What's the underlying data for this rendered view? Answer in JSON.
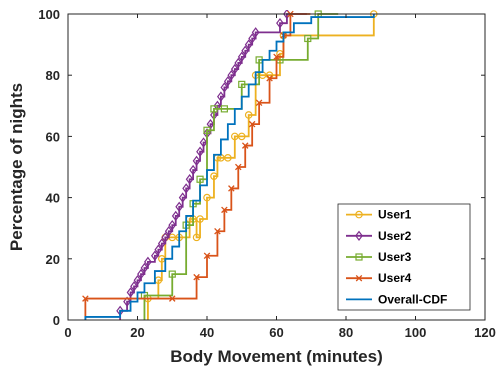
{
  "chart_data": {
    "type": "line",
    "step": true,
    "xlabel": "Body Movement (minutes)",
    "ylabel": "Percentage of nights",
    "xlim": [
      0,
      120
    ],
    "ylim": [
      0,
      100
    ],
    "xticks": [
      0,
      20,
      40,
      60,
      80,
      100,
      120
    ],
    "yticks": [
      0,
      20,
      40,
      60,
      80,
      100
    ],
    "grid": false,
    "legend_position": "bottom-right",
    "series": [
      {
        "name": "User1",
        "color": "#EDB120",
        "marker": "circle",
        "x": [
          23,
          26,
          27,
          28,
          30,
          32,
          35,
          36,
          37,
          38,
          40,
          42,
          43,
          44,
          46,
          48,
          50,
          52,
          54,
          56,
          58,
          61,
          62,
          88
        ],
        "y": [
          7,
          13,
          20,
          27,
          27,
          27,
          33,
          33,
          27,
          33,
          40,
          47,
          53,
          53,
          53,
          60,
          60,
          67,
          80,
          80,
          80,
          87,
          93,
          100
        ]
      },
      {
        "name": "User2",
        "color": "#7E2F8E",
        "marker": "diamond",
        "x": [
          15,
          17,
          18,
          19,
          20,
          21,
          22,
          23,
          25,
          26,
          27,
          28,
          29,
          30,
          31,
          32,
          33,
          34,
          35,
          36,
          37,
          38,
          39,
          40,
          41,
          42,
          43,
          44,
          45,
          46,
          47,
          48,
          49,
          50,
          51,
          52,
          53,
          54,
          61,
          63
        ],
        "y": [
          3,
          6,
          9,
          11,
          13,
          15,
          17,
          19,
          21,
          23,
          25,
          27,
          29,
          31,
          34,
          37,
          40,
          43,
          46,
          49,
          52,
          55,
          58,
          61,
          64,
          67,
          70,
          73,
          76,
          78,
          80,
          82,
          84,
          86,
          88,
          90,
          92,
          94,
          97,
          100
        ]
      },
      {
        "name": "User3",
        "color": "#77AC30",
        "marker": "square",
        "x": [
          22,
          30,
          34,
          36,
          38,
          40,
          42,
          45,
          50,
          55,
          61,
          69,
          72
        ],
        "y": [
          8,
          15,
          31,
          38,
          46,
          62,
          69,
          69,
          77,
          85,
          85,
          92,
          100
        ]
      },
      {
        "name": "User4",
        "color": "#D95319",
        "marker": "x",
        "x": [
          5,
          30,
          37,
          40,
          43,
          45,
          47,
          49,
          51,
          53,
          55,
          58,
          60,
          62,
          64
        ],
        "y": [
          7,
          7,
          14,
          21,
          29,
          36,
          43,
          50,
          57,
          64,
          71,
          79,
          86,
          93,
          100
        ]
      },
      {
        "name": "Overall-CDF",
        "color": "#0072BD",
        "marker": "none",
        "x": [
          5,
          15,
          18,
          20,
          22,
          25,
          28,
          30,
          32,
          34,
          36,
          38,
          40,
          42,
          44,
          46,
          48,
          50,
          52,
          54,
          56,
          58,
          60,
          62,
          65,
          70,
          88
        ],
        "y": [
          1,
          3,
          6,
          9,
          12,
          16,
          20,
          24,
          29,
          34,
          39,
          44,
          49,
          54,
          59,
          64,
          69,
          73,
          77,
          81,
          85,
          88,
          91,
          94,
          97,
          99,
          100
        ]
      }
    ]
  }
}
